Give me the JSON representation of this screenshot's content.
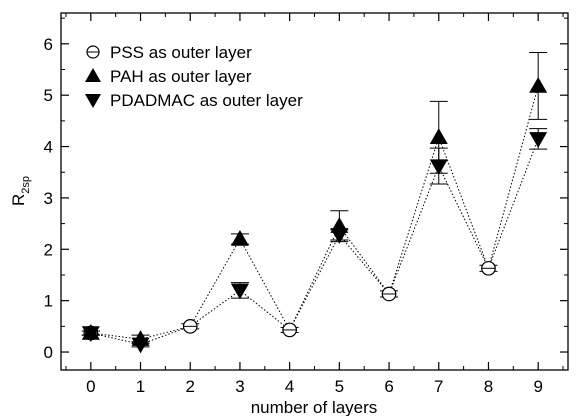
{
  "chart_data": {
    "type": "scatter",
    "xlabel": "number of layers",
    "ylabel_main": "R",
    "ylabel_sub": "2sp",
    "xlim": [
      -0.6,
      9.6
    ],
    "ylim": [
      -0.35,
      6.6
    ],
    "x_ticks": [
      0,
      1,
      2,
      3,
      4,
      5,
      6,
      7,
      8,
      9
    ],
    "y_ticks": [
      0,
      1,
      2,
      3,
      4,
      5,
      6
    ],
    "grid": false,
    "legend_position": "upper-left",
    "series": [
      {
        "name": "PSS as outer layer",
        "marker": "open-circle",
        "x": [
          0,
          2,
          4,
          6,
          8
        ],
        "y": [
          0.37,
          0.5,
          0.43,
          1.13,
          1.63
        ],
        "err": [
          0.04,
          0.05,
          0.05,
          0.06,
          0.06
        ]
      },
      {
        "name": "PAH as outer layer",
        "marker": "filled-triangle-up",
        "x": [
          0,
          1,
          3,
          5,
          7,
          9
        ],
        "y": [
          0.37,
          0.25,
          2.2,
          2.45,
          4.18,
          5.18
        ],
        "err": [
          0.04,
          0.08,
          0.1,
          0.3,
          0.7,
          0.65
        ]
      },
      {
        "name": "PDADMAC as outer layer",
        "marker": "filled-triangle-down",
        "x": [
          0,
          1,
          3,
          5,
          7,
          9
        ],
        "y": [
          0.37,
          0.15,
          1.2,
          2.28,
          3.62,
          4.15
        ],
        "err": [
          0.04,
          0.05,
          0.15,
          0.1,
          0.35,
          0.2
        ]
      }
    ],
    "lines": [
      {
        "x": [
          0,
          1,
          2,
          3,
          4,
          5,
          6,
          7,
          8,
          9
        ],
        "y": [
          0.37,
          0.25,
          0.5,
          2.2,
          0.43,
          2.45,
          1.13,
          4.18,
          1.63,
          5.18
        ]
      },
      {
        "x": [
          0,
          1,
          2,
          3,
          4,
          5,
          6,
          7,
          8,
          9
        ],
        "y": [
          0.37,
          0.15,
          0.5,
          1.2,
          0.43,
          2.28,
          1.13,
          3.62,
          1.63,
          4.15
        ]
      }
    ]
  }
}
